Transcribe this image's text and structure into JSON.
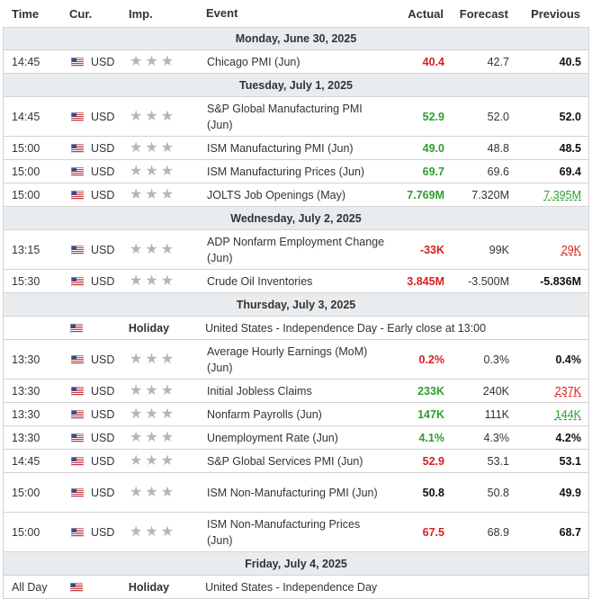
{
  "columns": {
    "time": "Time",
    "cur": "Cur.",
    "imp": "Imp.",
    "event": "Event",
    "actual": "Actual",
    "forecast": "Forecast",
    "previous": "Previous"
  },
  "days": [
    {
      "label": "Monday, June 30, 2025",
      "events": [
        {
          "time": "14:45",
          "cur": "USD",
          "event": "Chicago PMI (Jun)",
          "actual": "40.4",
          "actual_color": "red",
          "forecast": "42.7",
          "previous": "40.5",
          "prev_style": "bold",
          "tall": false
        }
      ]
    },
    {
      "label": "Tuesday, July 1, 2025",
      "events": [
        {
          "time": "14:45",
          "cur": "USD",
          "event": "S&P Global Manufacturing PMI (Jun)",
          "actual": "52.9",
          "actual_color": "green",
          "forecast": "52.0",
          "previous": "52.0",
          "prev_style": "bold",
          "tall": true
        },
        {
          "time": "15:00",
          "cur": "USD",
          "event": "ISM Manufacturing PMI (Jun)",
          "actual": "49.0",
          "actual_color": "green",
          "forecast": "48.8",
          "previous": "48.5",
          "prev_style": "bold",
          "tall": false
        },
        {
          "time": "15:00",
          "cur": "USD",
          "event": "ISM Manufacturing Prices (Jun)",
          "actual": "69.7",
          "actual_color": "green",
          "forecast": "69.6",
          "previous": "69.4",
          "prev_style": "bold",
          "tall": false
        },
        {
          "time": "15:00",
          "cur": "USD",
          "event": "JOLTS Job Openings (May)",
          "actual": "7.769M",
          "actual_color": "green",
          "forecast": "7.320M",
          "previous": "7.395M",
          "prev_style": "rev-green",
          "tall": false
        }
      ]
    },
    {
      "label": "Wednesday, July 2, 2025",
      "events": [
        {
          "time": "13:15",
          "cur": "USD",
          "event": "ADP Nonfarm Employment Change (Jun)",
          "actual": "-33K",
          "actual_color": "red",
          "forecast": "99K",
          "previous": "29K",
          "prev_style": "rev-red",
          "tall": true
        },
        {
          "time": "15:30",
          "cur": "USD",
          "event": "Crude Oil Inventories",
          "actual": "3.845M",
          "actual_color": "red",
          "forecast": "-3.500M",
          "previous": "-5.836M",
          "prev_style": "bold",
          "tall": false
        }
      ]
    },
    {
      "label": "Thursday, July 3, 2025",
      "holiday": {
        "imp": "Holiday",
        "event": "United States - Independence Day - Early close at 13:00"
      },
      "events": [
        {
          "time": "13:30",
          "cur": "USD",
          "event": "Average Hourly Earnings (MoM) (Jun)",
          "actual": "0.2%",
          "actual_color": "red",
          "forecast": "0.3%",
          "previous": "0.4%",
          "prev_style": "bold",
          "tall": true
        },
        {
          "time": "13:30",
          "cur": "USD",
          "event": "Initial Jobless Claims",
          "actual": "233K",
          "actual_color": "green",
          "forecast": "240K",
          "previous": "237K",
          "prev_style": "rev-red",
          "tall": false
        },
        {
          "time": "13:30",
          "cur": "USD",
          "event": "Nonfarm Payrolls (Jun)",
          "actual": "147K",
          "actual_color": "green",
          "forecast": "111K",
          "previous": "144K",
          "prev_style": "rev-green",
          "tall": false
        },
        {
          "time": "13:30",
          "cur": "USD",
          "event": "Unemployment Rate (Jun)",
          "actual": "4.1%",
          "actual_color": "green",
          "forecast": "4.3%",
          "previous": "4.2%",
          "prev_style": "bold",
          "tall": false
        },
        {
          "time": "14:45",
          "cur": "USD",
          "event": "S&P Global Services PMI (Jun)",
          "actual": "52.9",
          "actual_color": "red",
          "forecast": "53.1",
          "previous": "53.1",
          "prev_style": "bold",
          "tall": false
        },
        {
          "time": "15:00",
          "cur": "USD",
          "event": "ISM Non-Manufacturing PMI (Jun)",
          "actual": "50.8",
          "actual_color": "black",
          "forecast": "50.8",
          "previous": "49.9",
          "prev_style": "bold",
          "tall": true
        },
        {
          "time": "15:00",
          "cur": "USD",
          "event": "ISM Non-Manufacturing Prices (Jun)",
          "actual": "67.5",
          "actual_color": "red",
          "forecast": "68.9",
          "previous": "68.7",
          "prev_style": "bold",
          "tall": true
        }
      ]
    },
    {
      "label": "Friday, July 4, 2025",
      "allday": {
        "time": "All Day",
        "imp": "Holiday",
        "event": "United States - Independence Day"
      },
      "events": []
    }
  ],
  "colors": {
    "red": "#d91e1e",
    "green": "#2f9e2f",
    "day_bg": "#e9ecef",
    "border": "#d3d3d3",
    "star": "#b5b5b5"
  },
  "icons": {
    "flag": "us-flag-icon",
    "star": "star-icon"
  }
}
